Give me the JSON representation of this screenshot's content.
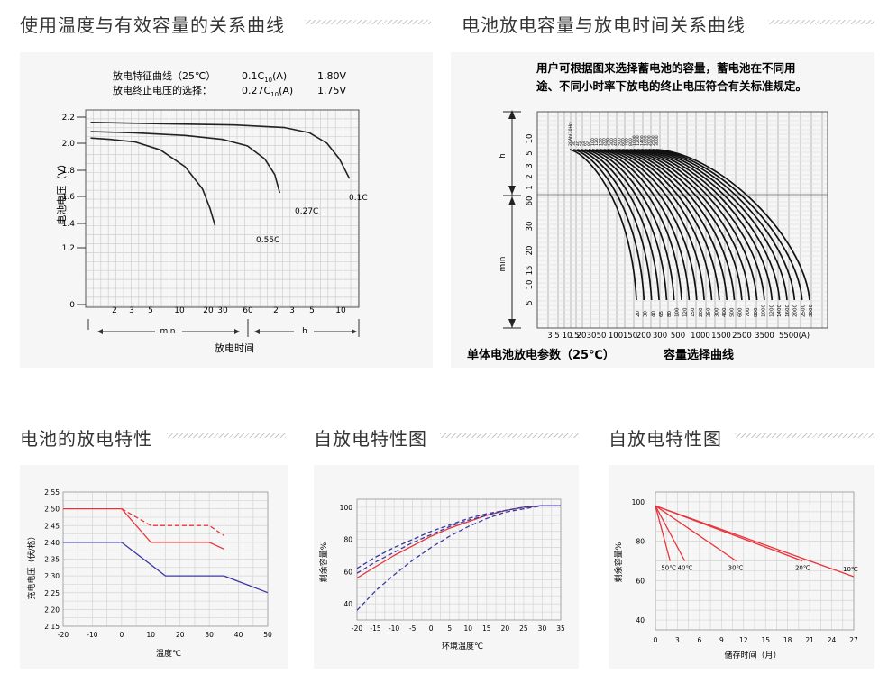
{
  "sections": [
    {
      "title": "使用温度与有效容量的关系曲线"
    },
    {
      "title": "电池放电容量与放电时间关系曲线"
    },
    {
      "title": "电池的放电特性"
    },
    {
      "title": "自放电特性图"
    },
    {
      "title": "自放电特性图"
    }
  ],
  "charts": {
    "c1": {
      "legend": [
        {
          "label": "放电特征曲线（25℃）",
          "current": "0.1C",
          "sub": "10",
          "unit": "(A)",
          "voltage": "1.80V"
        },
        {
          "label": "放电终止电压的选择：",
          "current": "0.27C",
          "sub": "10",
          "unit": "(A)",
          "voltage": "1.75V"
        }
      ],
      "ylabel": "电池电压（V）",
      "xlabel": "放电时间",
      "xunit_min": "min",
      "xunit_h": "h"
    },
    "c2": {
      "note_line1": "用户可根据图来选择蓄电池的容量，蓄电池在不同用",
      "note_line2": "途、不同小时率下放电的终止电压符合有关标准规定。",
      "yunit_h": "h",
      "yunit_min": "min",
      "caption_left": "单体电池放电参数（25℃）",
      "caption_right": "容量选择曲线"
    },
    "c3": {
      "ylabel": "充电电压（伏/格）",
      "xlabel": "温度℃"
    },
    "c4": {
      "ylabel": "剩余容量%",
      "xlabel": "环境温度℃"
    },
    "c5": {
      "ylabel": "剩余容量%",
      "xlabel": "储存时间（月）"
    }
  },
  "chart_data": [
    {
      "type": "line",
      "x_ticks": [
        "2",
        "3",
        "5",
        "10",
        "20",
        "30",
        "60",
        "2",
        "3",
        "5",
        "10"
      ],
      "y_ticks": [
        "0",
        "1.2",
        "1.4",
        "1.6",
        "1.8",
        "2.0",
        "2.2"
      ],
      "series": [
        {
          "name": "0.55C",
          "points": [
            [
              2,
              2.04
            ],
            [
              10,
              2.03
            ],
            [
              20,
              2.01
            ],
            [
              30,
              1.95
            ],
            [
              40,
              1.82
            ],
            [
              47,
              1.65
            ],
            [
              50,
              1.5
            ],
            [
              52,
              1.37
            ]
          ]
        },
        {
          "name": "0.27C",
          "points": [
            [
              2,
              2.09
            ],
            [
              20,
              2.08
            ],
            [
              40,
              2.06
            ],
            [
              55,
              2.03
            ],
            [
              65,
              1.98
            ],
            [
              72,
              1.88
            ],
            [
              76,
              1.76
            ],
            [
              78,
              1.62
            ]
          ]
        },
        {
          "name": "0.1C",
          "points": [
            [
              2,
              2.16
            ],
            [
              30,
              2.15
            ],
            [
              60,
              2.14
            ],
            [
              80,
              2.12
            ],
            [
              90,
              2.08
            ],
            [
              97,
              2.0
            ],
            [
              102,
              1.88
            ],
            [
              106,
              1.73
            ]
          ]
        }
      ]
    },
    {
      "type": "line",
      "x_ticks": [
        "3",
        "5",
        "10",
        "15",
        "20",
        "30",
        "50",
        "100",
        "150",
        "200",
        "300",
        "500",
        "1000",
        "1500",
        "2500",
        "3500",
        "5500(A)"
      ],
      "y_ticks_h": [
        "10",
        "5",
        "3",
        "2",
        "1"
      ],
      "y_ticks_min": [
        "60",
        "30",
        "20",
        "15",
        "10",
        "5"
      ],
      "series_names": [
        "20Ah(10Hr)",
        "30",
        "40",
        "50",
        "65",
        "80",
        "100",
        "120",
        "150",
        "200",
        "250",
        "300",
        "400",
        "500",
        "600",
        "700",
        "800",
        "1000",
        "1200",
        "1400",
        "1600",
        "2000",
        "2500",
        "3000"
      ],
      "bottom_labels": [
        "20",
        "30",
        "40",
        "65",
        "80",
        "100",
        "120",
        "150",
        "200",
        "250",
        "300",
        "400",
        "500",
        "600",
        "700",
        "800",
        "1000",
        "1200",
        "1400",
        "1600",
        "2000",
        "2500",
        "3000"
      ]
    },
    {
      "type": "line",
      "x_ticks": [
        "-20",
        "-10",
        "0",
        "10",
        "20",
        "30",
        "40",
        "50"
      ],
      "y_ticks": [
        "2.15",
        "2.20",
        "2.25",
        "2.30",
        "2.35",
        "2.40",
        "2.45",
        "2.50",
        "2.55"
      ],
      "series": [
        {
          "name": "",
          "color": "#e8343b",
          "style": "solid",
          "points": [
            [
              -20,
              2.5
            ],
            [
              0,
              2.5
            ],
            [
              10,
              2.4
            ],
            [
              30,
              2.4
            ],
            [
              35,
              2.38
            ]
          ]
        },
        {
          "name": "",
          "color": "#e8343b",
          "style": "dashed",
          "points": [
            [
              0,
              2.5
            ],
            [
              10,
              2.45
            ],
            [
              30,
              2.45
            ],
            [
              35,
              2.42
            ]
          ]
        },
        {
          "name": "",
          "color": "#3a3aa0",
          "style": "solid",
          "points": [
            [
              -20,
              2.4
            ],
            [
              0,
              2.4
            ],
            [
              15,
              2.3
            ],
            [
              35,
              2.3
            ],
            [
              50,
              2.25
            ]
          ]
        }
      ]
    },
    {
      "type": "line",
      "x_ticks": [
        "-20",
        "-15",
        "-10",
        "-5",
        "0",
        "5",
        "10",
        "15",
        "20",
        "25",
        "30",
        "35"
      ],
      "y_ticks": [
        "40",
        "60",
        "80",
        "100"
      ],
      "series": [
        {
          "name": "",
          "color": "#e8343b",
          "style": "solid",
          "points": [
            [
              -20,
              56
            ],
            [
              -15,
              63
            ],
            [
              -10,
              70
            ],
            [
              -5,
              76
            ],
            [
              0,
              82
            ],
            [
              5,
              87
            ],
            [
              10,
              91
            ],
            [
              15,
              95
            ],
            [
              20,
              98
            ],
            [
              25,
              100
            ],
            [
              30,
              101
            ],
            [
              35,
              101
            ]
          ]
        },
        {
          "name": "",
          "color": "#3a3aa0",
          "style": "dashed",
          "points": [
            [
              -20,
              62
            ],
            [
              -15,
              69
            ],
            [
              -10,
              75
            ],
            [
              -5,
              80
            ],
            [
              0,
              85
            ],
            [
              5,
              89
            ],
            [
              10,
              93
            ],
            [
              15,
              96
            ],
            [
              20,
              98
            ],
            [
              25,
              100
            ],
            [
              30,
              101
            ],
            [
              35,
              101
            ]
          ]
        },
        {
          "name": "",
          "color": "#3a3aa0",
          "style": "dashed",
          "points": [
            [
              -20,
              59
            ],
            [
              -15,
              66
            ],
            [
              -10,
              72
            ],
            [
              -5,
              78
            ],
            [
              0,
              83
            ],
            [
              5,
              88
            ],
            [
              10,
              92
            ],
            [
              15,
              95
            ],
            [
              20,
              98
            ],
            [
              25,
              100
            ],
            [
              30,
              101
            ],
            [
              35,
              101
            ]
          ]
        },
        {
          "name": "",
          "color": "#3a3aa0",
          "style": "dashed",
          "points": [
            [
              -20,
              36
            ],
            [
              -15,
              48
            ],
            [
              -10,
              58
            ],
            [
              -5,
              67
            ],
            [
              0,
              75
            ],
            [
              5,
              82
            ],
            [
              10,
              88
            ],
            [
              15,
              93
            ],
            [
              20,
              97
            ],
            [
              25,
              99
            ],
            [
              30,
              101
            ],
            [
              35,
              101
            ]
          ]
        }
      ]
    },
    {
      "type": "line",
      "x_ticks": [
        "0",
        "3",
        "6",
        "9",
        "12",
        "15",
        "18",
        "21",
        "24",
        "27"
      ],
      "y_ticks": [
        "40",
        "60",
        "80",
        "100"
      ],
      "series": [
        {
          "name": "50℃",
          "points": [
            [
              0,
              98
            ],
            [
              2,
              70
            ]
          ]
        },
        {
          "name": "40℃",
          "points": [
            [
              0,
              98
            ],
            [
              4,
              70
            ]
          ]
        },
        {
          "name": "30℃",
          "points": [
            [
              0,
              98
            ],
            [
              11,
              70
            ]
          ]
        },
        {
          "name": "20℃",
          "points": [
            [
              0,
              98
            ],
            [
              20,
              70
            ]
          ]
        },
        {
          "name": "10℃",
          "points": [
            [
              0,
              98
            ],
            [
              27,
              62
            ]
          ]
        }
      ]
    }
  ]
}
